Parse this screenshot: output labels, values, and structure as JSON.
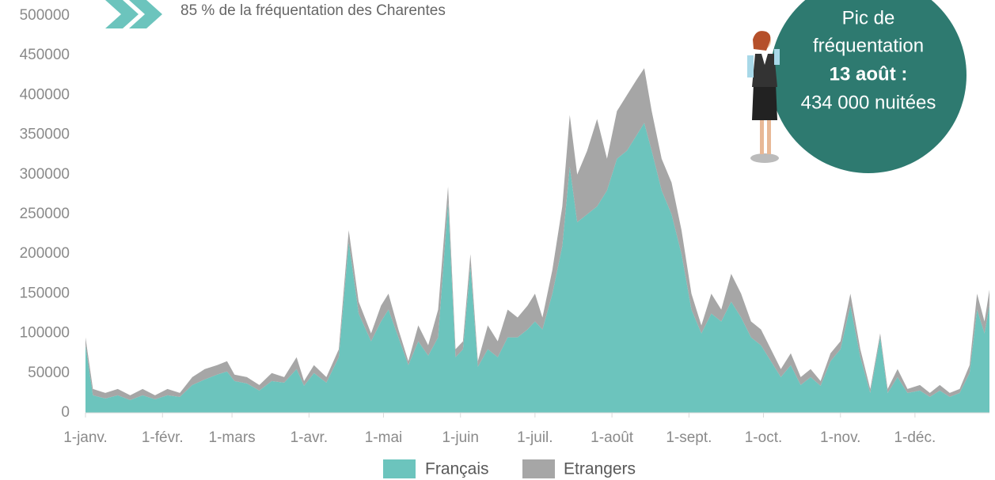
{
  "chart_data": {
    "type": "stacked-area",
    "annotation": "85 % de la fréquentation des Charentes",
    "callout": {
      "line1": "Pic de",
      "line2": "fréquentation",
      "line3": "13 août :",
      "line4": "434 000 nuitées"
    },
    "x": [
      0,
      3,
      8,
      13,
      18,
      23,
      28,
      33,
      38,
      43,
      48,
      53,
      57,
      60,
      65,
      70,
      75,
      80,
      85,
      88,
      92,
      97,
      102,
      106,
      110,
      115,
      119,
      122,
      126,
      130,
      134,
      138,
      142,
      146,
      149,
      152,
      155,
      158,
      162,
      166,
      170,
      174,
      178,
      181,
      184,
      188,
      192,
      195,
      198,
      202,
      206,
      210,
      214,
      218,
      222,
      225,
      228,
      232,
      236,
      240,
      244,
      248,
      252,
      256,
      260,
      264,
      268,
      272,
      276,
      280,
      284,
      288,
      292,
      296,
      300,
      304,
      308,
      312,
      316,
      320,
      323,
      327,
      331,
      336,
      340,
      344,
      348,
      352,
      356,
      359,
      362,
      364
    ],
    "series": [
      {
        "name": "Français",
        "color": "#6cc4bd",
        "values": [
          85000,
          22000,
          18000,
          22000,
          16000,
          22000,
          17000,
          22000,
          20000,
          35000,
          42000,
          48000,
          52000,
          40000,
          37000,
          28000,
          40000,
          38000,
          55000,
          34000,
          50000,
          38000,
          70000,
          215000,
          125000,
          90000,
          115000,
          130000,
          95000,
          60000,
          90000,
          72000,
          95000,
          265000,
          70000,
          80000,
          185000,
          58000,
          80000,
          70000,
          95000,
          95000,
          105000,
          115000,
          105000,
          150000,
          210000,
          310000,
          240000,
          250000,
          260000,
          280000,
          320000,
          330000,
          350000,
          365000,
          330000,
          280000,
          250000,
          200000,
          130000,
          100000,
          125000,
          115000,
          140000,
          120000,
          95000,
          85000,
          65000,
          45000,
          60000,
          35000,
          45000,
          34000,
          65000,
          80000,
          135000,
          70000,
          25000,
          95000,
          25000,
          45000,
          25000,
          28000,
          20000,
          28000,
          20000,
          25000,
          50000,
          130000,
          100000,
          135000
        ]
      },
      {
        "name": "Etrangers",
        "color": "#a6a6a6",
        "values": [
          10000,
          8000,
          7000,
          8000,
          6000,
          8000,
          5000,
          8000,
          5000,
          10000,
          13000,
          12000,
          13000,
          8000,
          8000,
          7000,
          10000,
          7000,
          15000,
          6000,
          10000,
          7000,
          10000,
          15000,
          15000,
          10000,
          20000,
          20000,
          10000,
          5000,
          20000,
          13000,
          35000,
          20000,
          10000,
          10000,
          15000,
          7000,
          30000,
          20000,
          35000,
          25000,
          30000,
          35000,
          15000,
          30000,
          50000,
          65000,
          60000,
          80000,
          110000,
          40000,
          60000,
          70000,
          70000,
          69000,
          50000,
          40000,
          40000,
          30000,
          20000,
          10000,
          25000,
          15000,
          35000,
          30000,
          20000,
          20000,
          15000,
          10000,
          15000,
          10000,
          10000,
          6000,
          10000,
          10000,
          15000,
          10000,
          5000,
          5000,
          5000,
          10000,
          5000,
          7000,
          5000,
          7000,
          5000,
          5000,
          10000,
          20000,
          15000,
          20000
        ]
      }
    ],
    "xlim": [
      0,
      364
    ],
    "xticks": [
      {
        "value": 0,
        "label": "1-janv."
      },
      {
        "value": 31,
        "label": "1-févr."
      },
      {
        "value": 59,
        "label": "1-mars"
      },
      {
        "value": 90,
        "label": "1-avr."
      },
      {
        "value": 120,
        "label": "1-mai"
      },
      {
        "value": 151,
        "label": "1-juin"
      },
      {
        "value": 181,
        "label": "1-juil."
      },
      {
        "value": 212,
        "label": "1-août"
      },
      {
        "value": 243,
        "label": "1-sept."
      },
      {
        "value": 273,
        "label": "1-oct."
      },
      {
        "value": 304,
        "label": "1-nov."
      },
      {
        "value": 334,
        "label": "1-déc."
      }
    ],
    "ylim": [
      0,
      500000
    ],
    "yticks": [
      0,
      50000,
      100000,
      150000,
      200000,
      250000,
      300000,
      350000,
      400000,
      450000,
      500000
    ]
  }
}
